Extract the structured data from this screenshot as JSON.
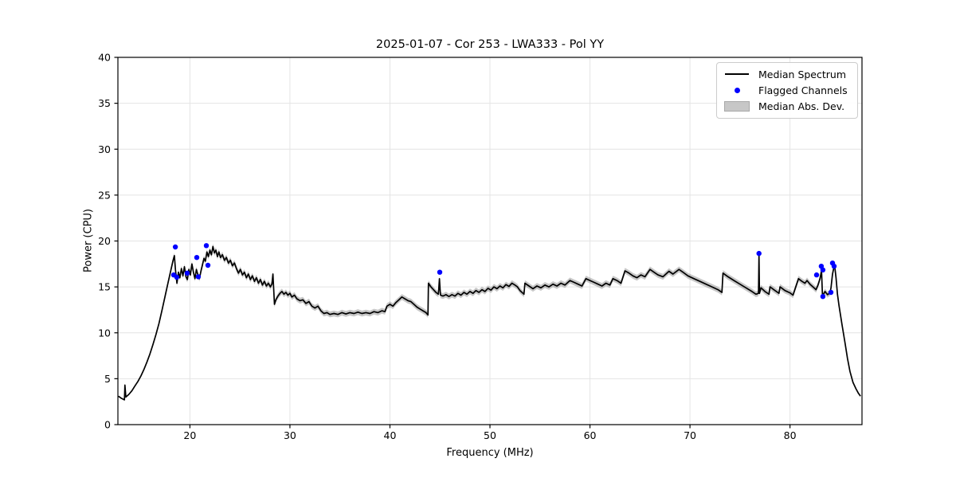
{
  "figure": {
    "title": "2025-01-07 - Cor 253 - LWA333 - Pol YY",
    "xlabel": "Frequency (MHz)",
    "ylabel": "Power (CPU)"
  },
  "legend": {
    "position": "upper right",
    "items": [
      {
        "label": "Median Spectrum",
        "swatch": "line",
        "color": "#000000"
      },
      {
        "label": "Flagged Channels",
        "swatch": "dot",
        "color": "#0000ff"
      },
      {
        "label": "Median Abs. Dev.",
        "swatch": "patch",
        "color": "#c8c8c8"
      }
    ]
  },
  "chart_data": {
    "type": "line",
    "title": "2025-01-07 - Cor 253 - LWA333 - Pol YY",
    "xlabel": "Frequency (MHz)",
    "ylabel": "Power (CPU)",
    "xlim": [
      12.8,
      87.2
    ],
    "ylim": [
      0,
      40
    ],
    "xticks": [
      20,
      30,
      40,
      50,
      60,
      70,
      80
    ],
    "yticks": [
      0,
      5,
      10,
      15,
      20,
      25,
      30,
      35,
      40
    ],
    "grid": true,
    "legend_position": "upper right",
    "colors": {
      "spectrum": "#000000",
      "flagged": "#0000ff",
      "mad_band": "rgba(130,130,130,0.45)",
      "grid": "#e4e4e4",
      "spine": "#000000"
    },
    "series": [
      {
        "name": "Median Spectrum",
        "type": "line",
        "points": [
          [
            12.85,
            3.1
          ],
          [
            13.1,
            2.9
          ],
          [
            13.35,
            2.75
          ],
          [
            13.45,
            2.7
          ],
          [
            13.5,
            4.3
          ],
          [
            13.6,
            3.0
          ],
          [
            13.9,
            3.3
          ],
          [
            14.2,
            3.7
          ],
          [
            14.5,
            4.2
          ],
          [
            14.8,
            4.7
          ],
          [
            15.1,
            5.3
          ],
          [
            15.4,
            6.0
          ],
          [
            15.7,
            6.8
          ],
          [
            16.0,
            7.7
          ],
          [
            16.3,
            8.7
          ],
          [
            16.6,
            9.8
          ],
          [
            16.9,
            11.0
          ],
          [
            17.2,
            12.4
          ],
          [
            17.5,
            13.9
          ],
          [
            17.8,
            15.4
          ],
          [
            18.05,
            16.6
          ],
          [
            18.3,
            17.8
          ],
          [
            18.45,
            18.4
          ],
          [
            18.55,
            16.9
          ],
          [
            18.7,
            15.4
          ],
          [
            18.85,
            16.6
          ],
          [
            19.0,
            16.0
          ],
          [
            19.15,
            17.0
          ],
          [
            19.3,
            16.2
          ],
          [
            19.45,
            17.2
          ],
          [
            19.6,
            16.1
          ],
          [
            19.75,
            15.8
          ],
          [
            19.9,
            16.9
          ],
          [
            20.05,
            16.3
          ],
          [
            20.2,
            17.5
          ],
          [
            20.35,
            16.6
          ],
          [
            20.5,
            15.9
          ],
          [
            20.65,
            16.9
          ],
          [
            20.8,
            16.3
          ],
          [
            20.95,
            15.9
          ],
          [
            21.1,
            16.7
          ],
          [
            21.25,
            17.4
          ],
          [
            21.4,
            18.1
          ],
          [
            21.55,
            17.8
          ],
          [
            21.7,
            18.8
          ],
          [
            21.85,
            18.3
          ],
          [
            22.0,
            19.0
          ],
          [
            22.15,
            18.5
          ],
          [
            22.3,
            19.4
          ],
          [
            22.45,
            18.7
          ],
          [
            22.6,
            19.0
          ],
          [
            22.75,
            18.3
          ],
          [
            22.9,
            18.8
          ],
          [
            23.05,
            18.2
          ],
          [
            23.25,
            18.5
          ],
          [
            23.45,
            17.9
          ],
          [
            23.65,
            18.2
          ],
          [
            23.85,
            17.6
          ],
          [
            24.05,
            17.9
          ],
          [
            24.25,
            17.3
          ],
          [
            24.45,
            17.6
          ],
          [
            24.65,
            17.0
          ],
          [
            24.85,
            16.5
          ],
          [
            25.05,
            16.9
          ],
          [
            25.25,
            16.3
          ],
          [
            25.45,
            16.6
          ],
          [
            25.65,
            16.0
          ],
          [
            25.85,
            16.4
          ],
          [
            26.05,
            15.8
          ],
          [
            26.25,
            16.2
          ],
          [
            26.45,
            15.6
          ],
          [
            26.65,
            16.0
          ],
          [
            26.85,
            15.4
          ],
          [
            27.05,
            15.8
          ],
          [
            27.25,
            15.2
          ],
          [
            27.45,
            15.6
          ],
          [
            27.65,
            15.1
          ],
          [
            27.85,
            15.4
          ],
          [
            28.05,
            15.0
          ],
          [
            28.2,
            15.3
          ],
          [
            28.3,
            16.4
          ],
          [
            28.45,
            13.1
          ],
          [
            28.6,
            13.6
          ],
          [
            28.8,
            14.0
          ],
          [
            29.0,
            14.3
          ],
          [
            29.2,
            14.5
          ],
          [
            29.4,
            14.2
          ],
          [
            29.6,
            14.4
          ],
          [
            29.8,
            14.1
          ],
          [
            30.0,
            14.3
          ],
          [
            30.2,
            13.9
          ],
          [
            30.45,
            14.1
          ],
          [
            30.7,
            13.7
          ],
          [
            31.0,
            13.5
          ],
          [
            31.3,
            13.6
          ],
          [
            31.6,
            13.2
          ],
          [
            31.9,
            13.4
          ],
          [
            32.2,
            12.9
          ],
          [
            32.5,
            12.7
          ],
          [
            32.8,
            12.9
          ],
          [
            33.1,
            12.4
          ],
          [
            33.4,
            12.1
          ],
          [
            33.7,
            12.2
          ],
          [
            34.0,
            12.0
          ],
          [
            34.4,
            12.1
          ],
          [
            34.8,
            12.0
          ],
          [
            35.2,
            12.2
          ],
          [
            35.6,
            12.05
          ],
          [
            36.0,
            12.2
          ],
          [
            36.4,
            12.1
          ],
          [
            36.8,
            12.25
          ],
          [
            37.2,
            12.1
          ],
          [
            37.6,
            12.2
          ],
          [
            38.0,
            12.1
          ],
          [
            38.4,
            12.3
          ],
          [
            38.8,
            12.2
          ],
          [
            39.2,
            12.4
          ],
          [
            39.5,
            12.3
          ],
          [
            39.7,
            12.9
          ],
          [
            40.0,
            13.1
          ],
          [
            40.3,
            12.9
          ],
          [
            40.6,
            13.3
          ],
          [
            40.9,
            13.6
          ],
          [
            41.2,
            13.9
          ],
          [
            41.5,
            13.7
          ],
          [
            41.8,
            13.5
          ],
          [
            42.1,
            13.4
          ],
          [
            42.4,
            13.1
          ],
          [
            42.7,
            12.8
          ],
          [
            43.0,
            12.6
          ],
          [
            43.3,
            12.4
          ],
          [
            43.6,
            12.2
          ],
          [
            43.8,
            11.95
          ],
          [
            43.85,
            15.4
          ],
          [
            44.1,
            15.0
          ],
          [
            44.35,
            14.7
          ],
          [
            44.6,
            14.4
          ],
          [
            44.85,
            14.2
          ],
          [
            44.95,
            15.9
          ],
          [
            45.05,
            14.1
          ],
          [
            45.3,
            14.0
          ],
          [
            45.6,
            14.15
          ],
          [
            45.9,
            13.95
          ],
          [
            46.2,
            14.15
          ],
          [
            46.5,
            14.0
          ],
          [
            46.8,
            14.3
          ],
          [
            47.1,
            14.1
          ],
          [
            47.4,
            14.4
          ],
          [
            47.7,
            14.2
          ],
          [
            48.0,
            14.5
          ],
          [
            48.3,
            14.3
          ],
          [
            48.6,
            14.6
          ],
          [
            48.9,
            14.4
          ],
          [
            49.2,
            14.7
          ],
          [
            49.5,
            14.5
          ],
          [
            49.8,
            14.85
          ],
          [
            50.1,
            14.65
          ],
          [
            50.4,
            15.0
          ],
          [
            50.7,
            14.8
          ],
          [
            51.0,
            15.1
          ],
          [
            51.3,
            14.9
          ],
          [
            51.6,
            15.25
          ],
          [
            51.9,
            15.05
          ],
          [
            52.2,
            15.4
          ],
          [
            52.5,
            15.2
          ],
          [
            52.75,
            15.0
          ],
          [
            53.0,
            14.6
          ],
          [
            53.4,
            14.2
          ],
          [
            53.5,
            15.4
          ],
          [
            53.9,
            15.1
          ],
          [
            54.3,
            14.8
          ],
          [
            54.7,
            15.1
          ],
          [
            55.1,
            14.9
          ],
          [
            55.5,
            15.2
          ],
          [
            55.9,
            15.0
          ],
          [
            56.3,
            15.3
          ],
          [
            56.7,
            15.1
          ],
          [
            57.1,
            15.4
          ],
          [
            57.5,
            15.2
          ],
          [
            58.0,
            15.7
          ],
          [
            58.4,
            15.5
          ],
          [
            58.8,
            15.3
          ],
          [
            59.2,
            15.1
          ],
          [
            59.6,
            15.9
          ],
          [
            60.0,
            15.7
          ],
          [
            60.4,
            15.5
          ],
          [
            60.8,
            15.3
          ],
          [
            61.2,
            15.1
          ],
          [
            61.6,
            15.4
          ],
          [
            62.0,
            15.2
          ],
          [
            62.3,
            15.9
          ],
          [
            62.7,
            15.7
          ],
          [
            63.1,
            15.4
          ],
          [
            63.5,
            16.75
          ],
          [
            63.9,
            16.5
          ],
          [
            64.3,
            16.2
          ],
          [
            64.7,
            16.0
          ],
          [
            65.1,
            16.3
          ],
          [
            65.5,
            16.1
          ],
          [
            66.0,
            16.9
          ],
          [
            66.4,
            16.6
          ],
          [
            66.8,
            16.3
          ],
          [
            67.3,
            16.1
          ],
          [
            67.9,
            16.7
          ],
          [
            68.3,
            16.4
          ],
          [
            68.9,
            16.9
          ],
          [
            69.3,
            16.6
          ],
          [
            69.8,
            16.2
          ],
          [
            70.4,
            15.9
          ],
          [
            71.0,
            15.6
          ],
          [
            71.6,
            15.3
          ],
          [
            72.2,
            15.0
          ],
          [
            72.8,
            14.7
          ],
          [
            73.2,
            14.4
          ],
          [
            73.3,
            16.5
          ],
          [
            73.8,
            16.1
          ],
          [
            74.4,
            15.7
          ],
          [
            75.0,
            15.3
          ],
          [
            75.6,
            14.9
          ],
          [
            76.2,
            14.5
          ],
          [
            76.6,
            14.2
          ],
          [
            76.85,
            14.3
          ],
          [
            76.9,
            18.5
          ],
          [
            76.95,
            14.3
          ],
          [
            77.1,
            14.9
          ],
          [
            77.5,
            14.5
          ],
          [
            77.9,
            14.2
          ],
          [
            78.0,
            15.0
          ],
          [
            78.5,
            14.6
          ],
          [
            78.9,
            14.3
          ],
          [
            79.0,
            15.0
          ],
          [
            79.5,
            14.6
          ],
          [
            80.0,
            14.35
          ],
          [
            80.3,
            14.1
          ],
          [
            80.85,
            15.9
          ],
          [
            81.2,
            15.6
          ],
          [
            81.5,
            15.4
          ],
          [
            81.7,
            15.7
          ],
          [
            82.0,
            15.3
          ],
          [
            82.3,
            15.0
          ],
          [
            82.6,
            14.7
          ],
          [
            82.8,
            15.2
          ],
          [
            83.0,
            15.9
          ],
          [
            83.15,
            16.8
          ],
          [
            83.25,
            14.0
          ],
          [
            83.5,
            14.5
          ],
          [
            83.75,
            14.15
          ],
          [
            84.0,
            14.35
          ],
          [
            84.1,
            14.9
          ],
          [
            84.25,
            16.4
          ],
          [
            84.45,
            17.45
          ],
          [
            84.6,
            16.0
          ],
          [
            84.75,
            14.2
          ],
          [
            84.9,
            13.0
          ],
          [
            85.2,
            10.9
          ],
          [
            85.5,
            8.9
          ],
          [
            85.75,
            7.2
          ],
          [
            86.0,
            5.8
          ],
          [
            86.3,
            4.6
          ],
          [
            86.6,
            3.9
          ],
          [
            86.85,
            3.4
          ],
          [
            87.05,
            3.1
          ]
        ]
      },
      {
        "name": "Flagged Channels",
        "type": "scatter",
        "points": [
          [
            18.38,
            16.3
          ],
          [
            18.54,
            19.35
          ],
          [
            18.69,
            16.05
          ],
          [
            19.73,
            16.5
          ],
          [
            20.69,
            18.2
          ],
          [
            20.84,
            16.1
          ],
          [
            21.64,
            19.5
          ],
          [
            21.8,
            17.35
          ],
          [
            44.98,
            16.6
          ],
          [
            76.9,
            18.65
          ],
          [
            82.66,
            16.3
          ],
          [
            83.13,
            17.25
          ],
          [
            83.29,
            16.85
          ],
          [
            83.29,
            13.95
          ],
          [
            84.09,
            14.4
          ],
          [
            84.25,
            17.6
          ],
          [
            84.41,
            17.25
          ]
        ]
      },
      {
        "name": "Median Abs. Dev.",
        "type": "band",
        "halfwidth": 0.32,
        "range": [
          17.4,
          84.65
        ]
      }
    ]
  }
}
